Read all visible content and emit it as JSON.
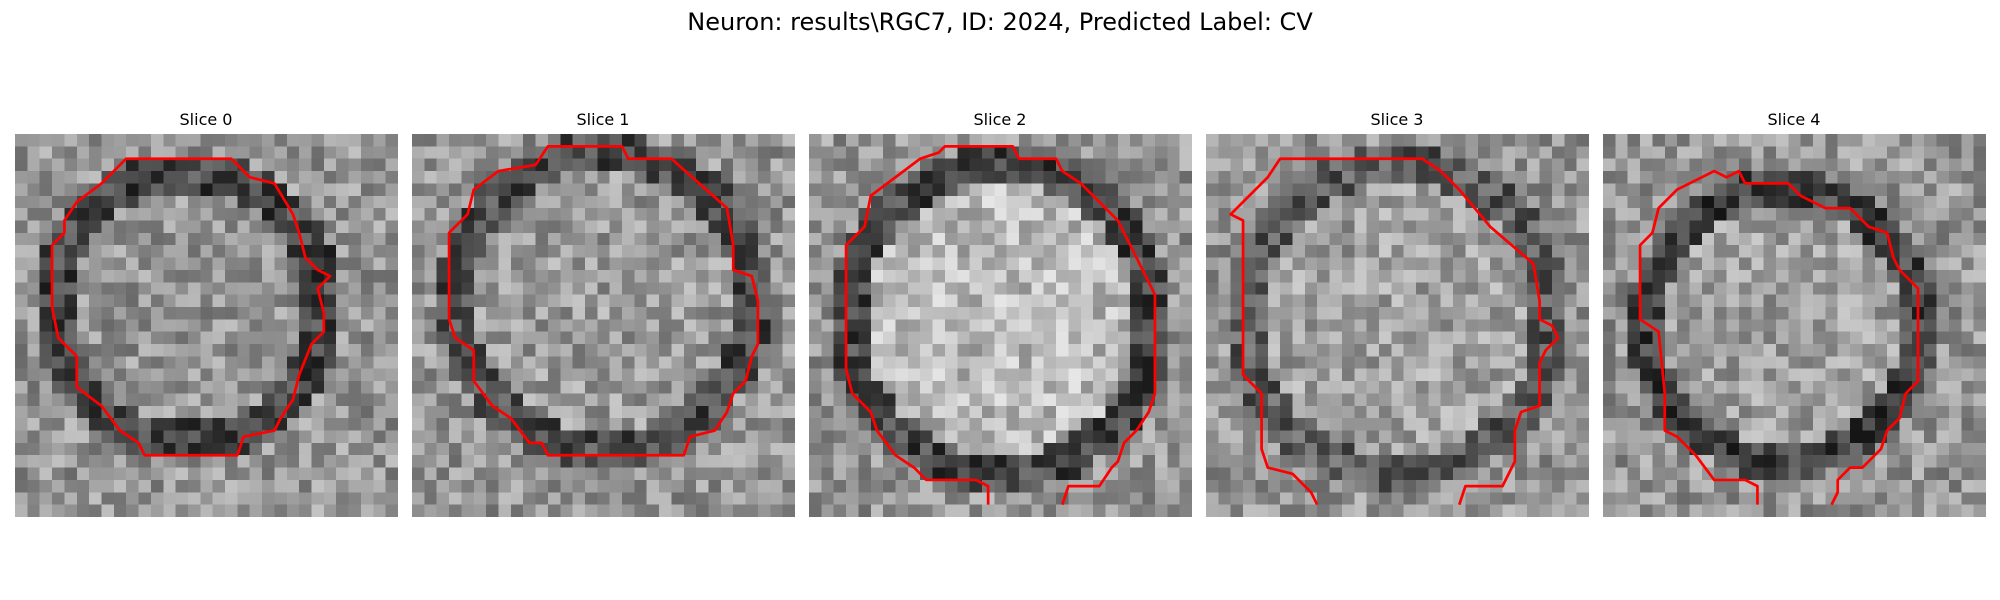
{
  "title": "Neuron: results\\RGC7, ID: 2024, Predicted Label: CV",
  "slices": [
    {
      "label": "Slice 0"
    },
    {
      "label": "Slice 1"
    },
    {
      "label": "Slice 2"
    },
    {
      "label": "Slice 3"
    },
    {
      "label": "Slice 4"
    }
  ],
  "colors": {
    "contour": "#ff0000",
    "colormap": "grayscale"
  }
}
